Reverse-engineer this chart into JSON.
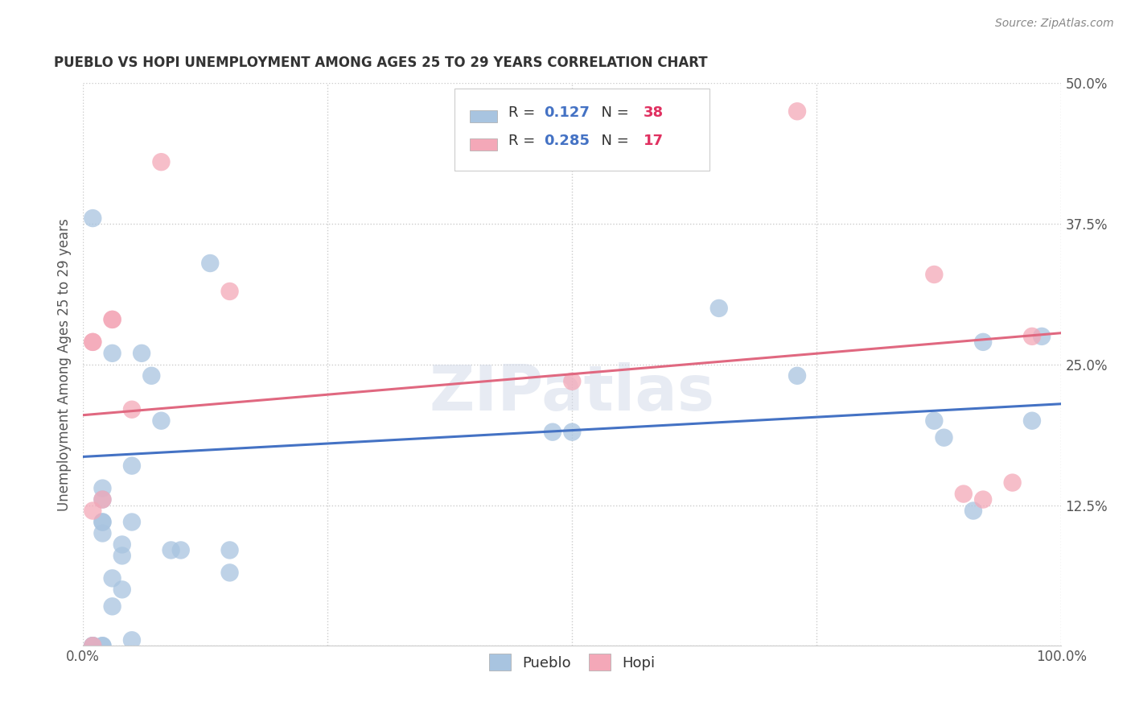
{
  "title": "PUEBLO VS HOPI UNEMPLOYMENT AMONG AGES 25 TO 29 YEARS CORRELATION CHART",
  "source": "Source: ZipAtlas.com",
  "ylabel": "Unemployment Among Ages 25 to 29 years",
  "xlim": [
    0,
    1.0
  ],
  "ylim": [
    0,
    0.5
  ],
  "xticks": [
    0.0,
    0.25,
    0.5,
    0.75,
    1.0
  ],
  "xticklabels": [
    "0.0%",
    "",
    "",
    "",
    "100.0%"
  ],
  "yticks": [
    0.0,
    0.125,
    0.25,
    0.375,
    0.5
  ],
  "yticklabels": [
    "",
    "12.5%",
    "25.0%",
    "37.5%",
    "50.0%"
  ],
  "pueblo_R": "0.127",
  "pueblo_N": "38",
  "hopi_R": "0.285",
  "hopi_N": "17",
  "pueblo_color": "#a8c4e0",
  "hopi_color": "#f4a8b8",
  "pueblo_line_color": "#4472c4",
  "hopi_line_color": "#e06880",
  "r_text_color": "#4472c4",
  "n_text_color": "#e03060",
  "watermark_text": "ZIPatlas",
  "pueblo_label": "Pueblo",
  "hopi_label": "Hopi",
  "pueblo_x": [
    0.01,
    0.01,
    0.01,
    0.01,
    0.02,
    0.02,
    0.02,
    0.02,
    0.03,
    0.03,
    0.04,
    0.04,
    0.04,
    0.05,
    0.05,
    0.06,
    0.07,
    0.08,
    0.09,
    0.1,
    0.13,
    0.15,
    0.15,
    0.48,
    0.5,
    0.65,
    0.73,
    0.87,
    0.88,
    0.91,
    0.92,
    0.97,
    0.98,
    0.02,
    0.02,
    0.02,
    0.03,
    0.05
  ],
  "pueblo_y": [
    0.0,
    0.0,
    0.0,
    0.38,
    0.0,
    0.0,
    0.1,
    0.11,
    0.035,
    0.06,
    0.05,
    0.08,
    0.09,
    0.005,
    0.16,
    0.26,
    0.24,
    0.2,
    0.085,
    0.085,
    0.34,
    0.065,
    0.085,
    0.19,
    0.19,
    0.3,
    0.24,
    0.2,
    0.185,
    0.12,
    0.27,
    0.2,
    0.275,
    0.13,
    0.14,
    0.11,
    0.26,
    0.11
  ],
  "hopi_x": [
    0.01,
    0.01,
    0.02,
    0.03,
    0.03,
    0.05,
    0.08,
    0.15,
    0.5,
    0.73,
    0.87,
    0.9,
    0.92,
    0.95,
    0.97,
    0.01,
    0.01
  ],
  "hopi_y": [
    0.0,
    0.27,
    0.13,
    0.29,
    0.29,
    0.21,
    0.43,
    0.315,
    0.235,
    0.475,
    0.33,
    0.135,
    0.13,
    0.145,
    0.275,
    0.12,
    0.27
  ]
}
